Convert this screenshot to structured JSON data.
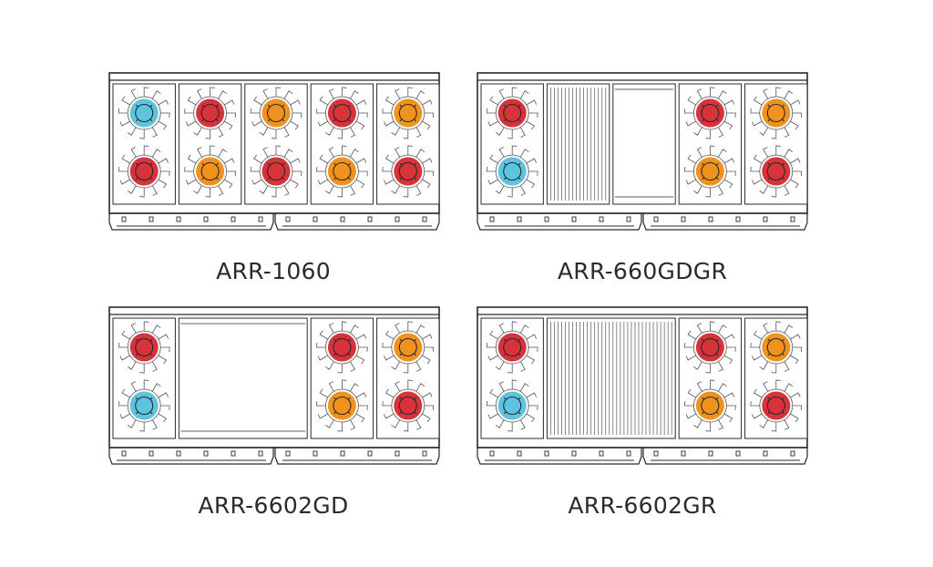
{
  "colors": {
    "outline": "#2a2a2a",
    "grate": "#555555",
    "burner_red": "#d8323a",
    "burner_orange": "#f0931e",
    "burner_blue": "#5cc4df"
  },
  "ranges": [
    {
      "model": "ARR-1060",
      "sections": [
        {
          "type": "burner_pair",
          "colors": [
            "blue",
            "red"
          ]
        },
        {
          "type": "burner_pair",
          "colors": [
            "red",
            "orange"
          ]
        },
        {
          "type": "burner_pair",
          "colors": [
            "orange",
            "red"
          ]
        },
        {
          "type": "burner_pair",
          "colors": [
            "red",
            "orange"
          ]
        },
        {
          "type": "burner_pair",
          "colors": [
            "orange",
            "red"
          ]
        }
      ]
    },
    {
      "model": "ARR-660GDGR",
      "sections": [
        {
          "type": "burner_pair",
          "colors": [
            "red",
            "blue"
          ]
        },
        {
          "type": "grill"
        },
        {
          "type": "griddle"
        },
        {
          "type": "burner_pair",
          "colors": [
            "red",
            "orange"
          ]
        },
        {
          "type": "burner_pair",
          "colors": [
            "orange",
            "red"
          ]
        }
      ]
    },
    {
      "model": "ARR-6602GD",
      "sections": [
        {
          "type": "burner_pair",
          "colors": [
            "red",
            "blue"
          ]
        },
        {
          "type": "griddle_wide"
        },
        {
          "type": "burner_pair",
          "colors": [
            "red",
            "orange"
          ]
        },
        {
          "type": "burner_pair",
          "colors": [
            "orange",
            "red"
          ]
        }
      ]
    },
    {
      "model": "ARR-6602GR",
      "sections": [
        {
          "type": "burner_pair",
          "colors": [
            "red",
            "blue"
          ]
        },
        {
          "type": "grill_wide"
        },
        {
          "type": "burner_pair",
          "colors": [
            "red",
            "orange"
          ]
        },
        {
          "type": "burner_pair",
          "colors": [
            "orange",
            "red"
          ]
        }
      ]
    }
  ]
}
